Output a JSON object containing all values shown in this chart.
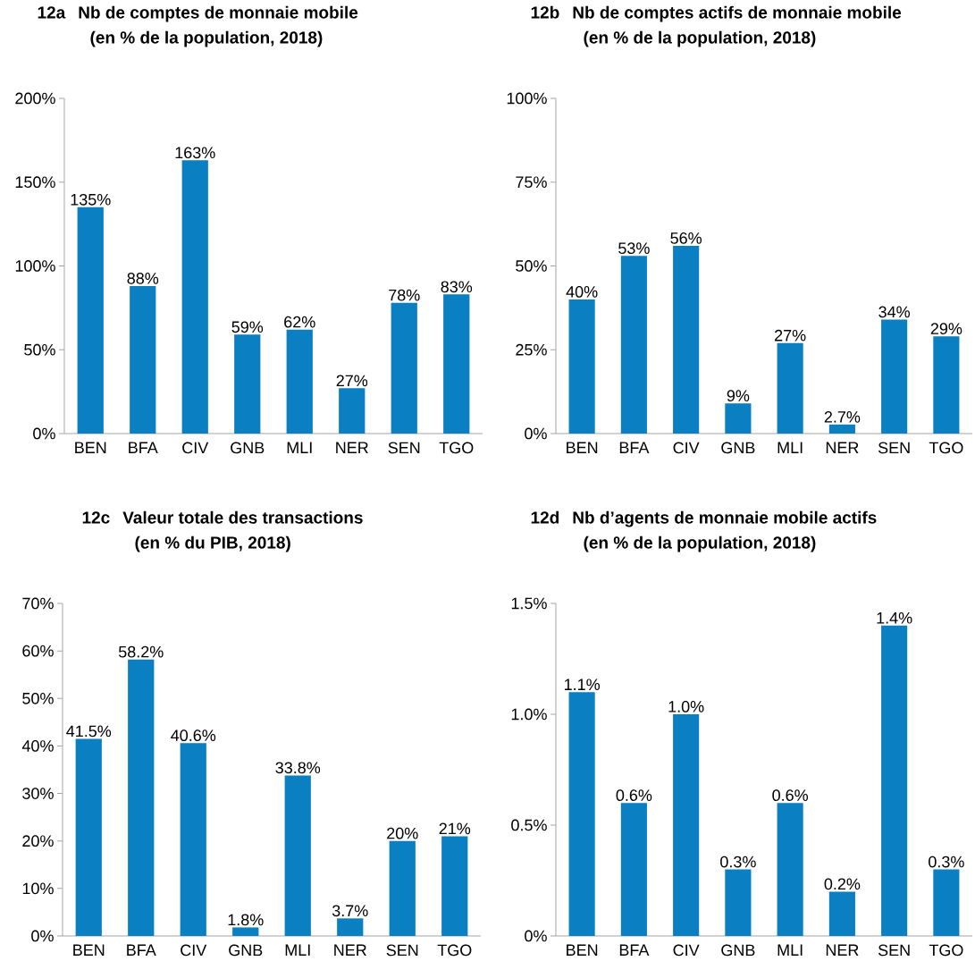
{
  "chart_data": [
    {
      "type": "bar",
      "title": "12a",
      "subtitle": "Nb de comptes de monnaie mobile",
      "annotations": [
        "(en % de la population, 2018)"
      ],
      "categories": [
        "BEN",
        "BFA",
        "CIV",
        "GNB",
        "MLI",
        "NER",
        "SEN",
        "TGO"
      ],
      "values": [
        135,
        88,
        163,
        59,
        62,
        27,
        78,
        83
      ],
      "value_labels": [
        "135%",
        "88%",
        "163%",
        "59%",
        "62%",
        "27%",
        "78%",
        "83%"
      ],
      "color": "#0a7fc2",
      "ylim": [
        0,
        200
      ],
      "yticks": [
        {
          "value": 0,
          "label": "0%"
        },
        {
          "value": 50,
          "label": "50%"
        },
        {
          "value": 100,
          "label": "100%"
        },
        {
          "value": 150,
          "label": "150%"
        },
        {
          "value": 200,
          "label": "200%"
        }
      ]
    },
    {
      "type": "bar",
      "title": "12b",
      "subtitle": "Nb de comptes actifs de monnaie mobile",
      "annotations": [
        "(en % de la population, 2018)"
      ],
      "categories": [
        "BEN",
        "BFA",
        "CIV",
        "GNB",
        "MLI",
        "NER",
        "SEN",
        "TGO"
      ],
      "values": [
        40,
        53,
        56,
        9,
        27,
        2.7,
        34,
        29
      ],
      "value_labels": [
        "40%",
        "53%",
        "56%",
        "9%",
        "27%",
        "2.7%",
        "34%",
        "29%"
      ],
      "color": "#0a7fc2",
      "ylim": [
        0,
        100
      ],
      "yticks": [
        {
          "value": 0,
          "label": "0%"
        },
        {
          "value": 25,
          "label": "25%"
        },
        {
          "value": 50,
          "label": "50%"
        },
        {
          "value": 75,
          "label": "75%"
        },
        {
          "value": 100,
          "label": "100%"
        }
      ]
    },
    {
      "type": "bar",
      "title": "12c",
      "subtitle": "Valeur totale des transactions",
      "annotations": [
        "(en % du PIB, 2018)"
      ],
      "categories": [
        "BEN",
        "BFA",
        "CIV",
        "GNB",
        "MLI",
        "NER",
        "SEN",
        "TGO"
      ],
      "values": [
        41.5,
        58.2,
        40.6,
        1.8,
        33.8,
        3.7,
        20,
        21
      ],
      "value_labels": [
        "41.5%",
        "58.2%",
        "40.6%",
        "1.8%",
        "33.8%",
        "3.7%",
        "20%",
        "21%"
      ],
      "color": "#0a7fc2",
      "ylim": [
        0,
        70
      ],
      "yticks": [
        {
          "value": 0,
          "label": "0%"
        },
        {
          "value": 10,
          "label": "10%"
        },
        {
          "value": 20,
          "label": "20%"
        },
        {
          "value": 30,
          "label": "30%"
        },
        {
          "value": 40,
          "label": "40%"
        },
        {
          "value": 50,
          "label": "50%"
        },
        {
          "value": 60,
          "label": "60%"
        },
        {
          "value": 70,
          "label": "70%"
        }
      ]
    },
    {
      "type": "bar",
      "title": "12d",
      "subtitle": "Nb d’agents de monnaie mobile actifs",
      "annotations": [
        "(en % de la population, 2018)"
      ],
      "categories": [
        "BEN",
        "BFA",
        "CIV",
        "GNB",
        "MLI",
        "NER",
        "SEN",
        "TGO"
      ],
      "values": [
        1.1,
        0.6,
        1.0,
        0.3,
        0.6,
        0.2,
        1.4,
        0.3
      ],
      "value_labels": [
        "1.1%",
        "0.6%",
        "1.0%",
        "0.3%",
        "0.6%",
        "0.2%",
        "1.4%",
        "0.3%"
      ],
      "color": "#0a7fc2",
      "ylim": [
        0,
        1.5
      ],
      "yticks": [
        {
          "value": 0,
          "label": "0%"
        },
        {
          "value": 0.5,
          "label": "0.5%"
        },
        {
          "value": 1.0,
          "label": "1.0%"
        },
        {
          "value": 1.5,
          "label": "1.5%"
        }
      ]
    }
  ]
}
